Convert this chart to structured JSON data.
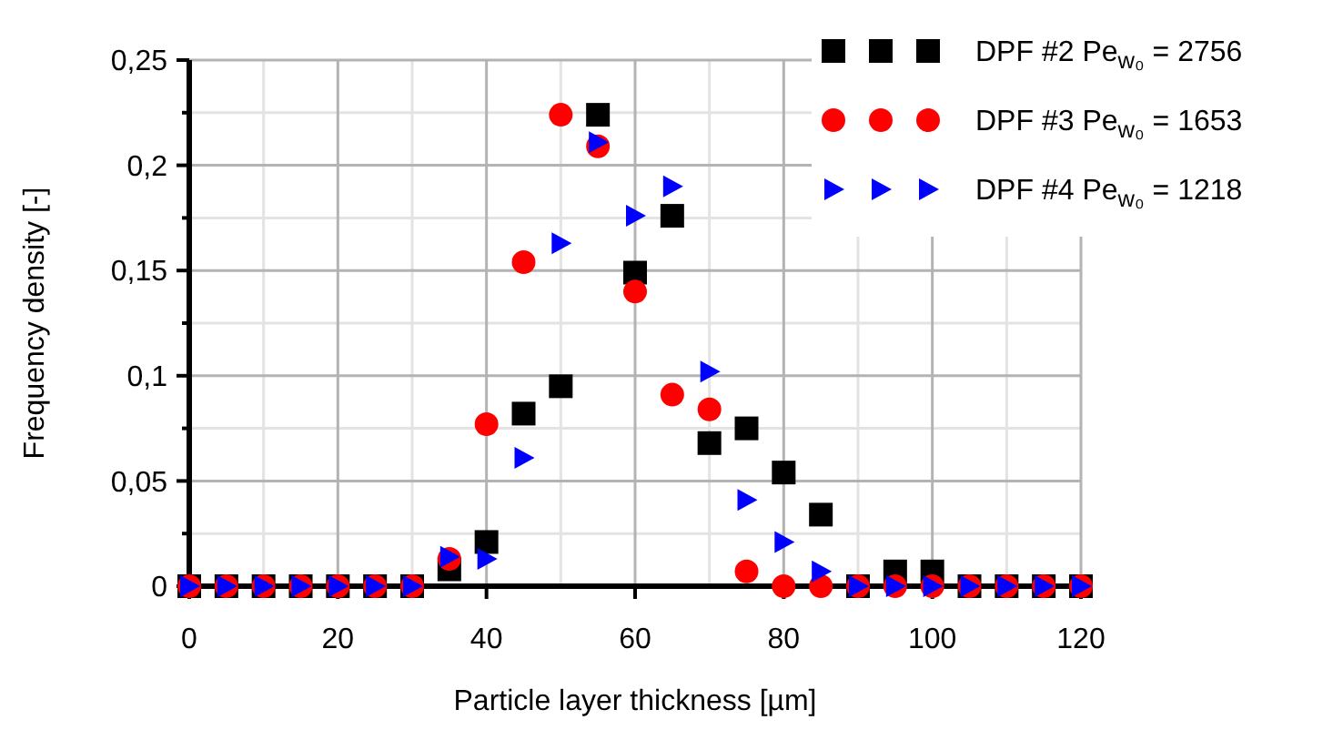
{
  "chart_data": {
    "type": "scatter",
    "xlabel": "Particle layer thickness [µm]",
    "ylabel": "Frequency density [-]",
    "x": [
      0,
      5,
      10,
      15,
      20,
      25,
      30,
      35,
      40,
      45,
      50,
      55,
      60,
      65,
      70,
      75,
      80,
      85,
      90,
      95,
      100,
      105,
      110,
      115,
      120
    ],
    "series": [
      {
        "name": "DPF #2 Pe$_{w₀}$ = 2756",
        "color": "#000000",
        "marker": "square",
        "values": [
          0,
          0,
          0,
          0,
          0,
          0,
          0,
          0.008,
          0.021,
          0.082,
          0.095,
          0.224,
          0.149,
          0.176,
          0.068,
          0.075,
          0.054,
          0.034,
          0,
          0.007,
          0.007,
          0,
          0,
          0,
          0
        ]
      },
      {
        "name": "DPF #3 Pe$_{w₀}$ = 1653",
        "color": "#ff0000",
        "marker": "circle",
        "values": [
          0,
          0,
          0,
          0,
          0,
          0,
          0,
          0.013,
          0.077,
          0.154,
          0.224,
          0.209,
          0.14,
          0.091,
          0.084,
          0.007,
          0,
          0,
          0,
          0,
          0,
          0,
          0,
          0,
          0
        ]
      },
      {
        "name": "DPF #4 Pe$_{w₀}$ = 1218",
        "color": "#0000ff",
        "marker": "triangle",
        "values": [
          0,
          0,
          0,
          0,
          0,
          0,
          0,
          0.014,
          0.013,
          0.061,
          0.163,
          0.211,
          0.176,
          0.19,
          0.102,
          0.041,
          0.021,
          0.007,
          0,
          0,
          0,
          0,
          0,
          0,
          0
        ]
      }
    ],
    "xlim": [
      0,
      120
    ],
    "xticks": [
      0,
      20,
      40,
      60,
      80,
      100,
      120
    ],
    "ylim": [
      0,
      0.25
    ],
    "yticks": [
      {
        "value": 0,
        "label": "0"
      },
      {
        "value": 0.05,
        "label": "0,05"
      },
      {
        "value": 0.1,
        "label": "0,1"
      },
      {
        "value": 0.15,
        "label": "0,15"
      },
      {
        "value": 0.2,
        "label": "0,2"
      },
      {
        "value": 0.25,
        "label": "0,25"
      }
    ],
    "grid": true,
    "legend": "top right"
  }
}
